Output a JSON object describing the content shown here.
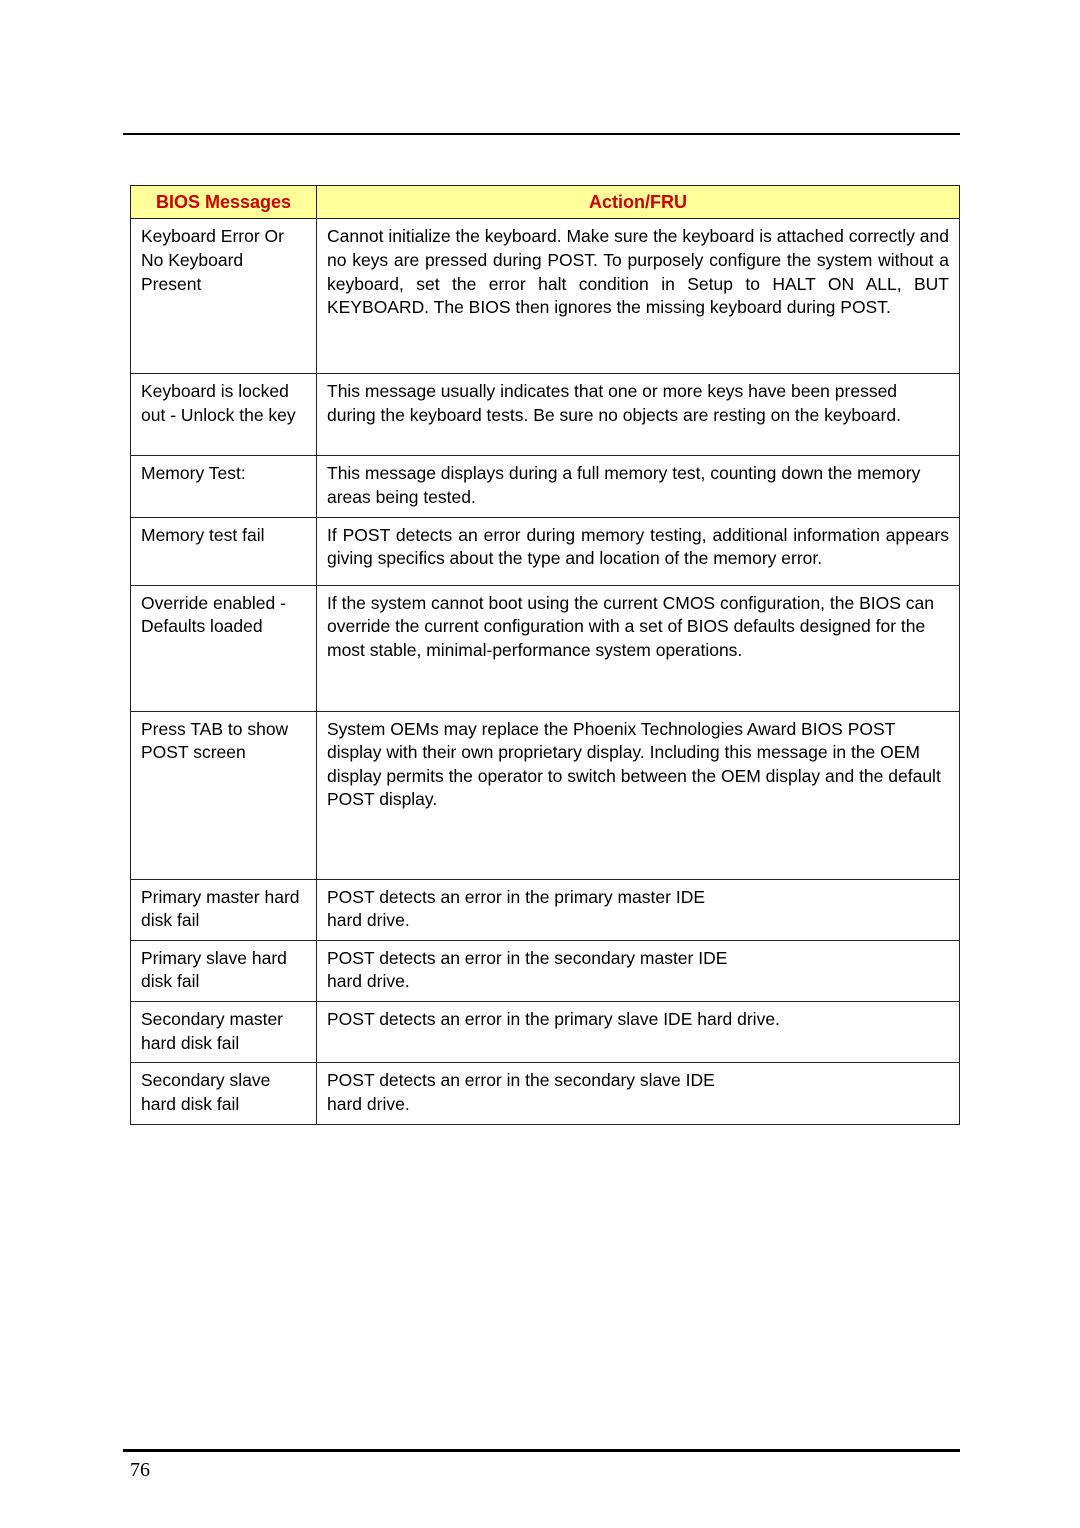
{
  "page_number": "76",
  "table": {
    "columns": [
      "BIOS Messages",
      "Action/FRU"
    ],
    "header_bg": "#ffff99",
    "header_color": "#cc0000",
    "border_color": "#222222",
    "font_size": 17.5,
    "rows": [
      {
        "msg": "Keyboard Error Or No Keyboard Present",
        "action": "Cannot initialize the keyboard. Make sure the keyboard is attached correctly and no keys are pressed during POST. To purposely configure the system without a keyboard, set the error halt condition in Setup to HALT ON ALL, BUT KEYBOARD. The BIOS then ignores the missing keyboard during POST.",
        "row_class": "row-tall",
        "justify": true
      },
      {
        "msg": "Keyboard is locked out - Unlock the key",
        "action": "This message usually indicates that one or more keys have been pressed during the keyboard tests. Be sure no objects are resting on the keyboard.",
        "row_class": "row-med2"
      },
      {
        "msg": "Memory Test:",
        "action": "This message displays during a full memory test, counting down the memory areas being tested.",
        "row_class": "row-sm"
      },
      {
        "msg": "Memory test fail",
        "action": "If POST detects an error during memory testing, additional information appears giving specifics about the type and location of the memory error.",
        "row_class": "row-med",
        "justify": true
      },
      {
        "msg": "Override enabled - Defaults loaded",
        "action": "If the system cannot boot using the current CMOS configuration, the BIOS can override the current configuration with a set of BIOS defaults designed for the most stable, minimal-performance system operations.",
        "row_class": "row-big"
      },
      {
        "msg": "Press TAB to show POST screen",
        "action": "System OEMs may replace the Phoenix Technologies Award BIOS POST display with their own proprietary display. Including this message in the OEM display permits the operator to switch between the OEM display and the default POST display.",
        "row_class": "row-big2"
      },
      {
        "msg": "Primary master hard disk fail",
        "action": "POST detects an error in the primary master IDE hard drive.",
        "row_class": "row-sm",
        "br_after": "IDE"
      },
      {
        "msg": "Primary slave hard disk fail",
        "action": "POST detects an error in the secondary master IDE hard drive.",
        "row_class": "row-sm",
        "br_after": "IDE"
      },
      {
        "msg": "Secondary master hard disk fail",
        "action": "POST detects an error in the primary slave IDE hard drive.",
        "row_class": "row-sm"
      },
      {
        "msg": "Secondary slave hard disk fail",
        "action": "POST detects an error in the secondary slave IDE hard drive.",
        "row_class": "row-sm",
        "br_after": "IDE"
      }
    ]
  }
}
